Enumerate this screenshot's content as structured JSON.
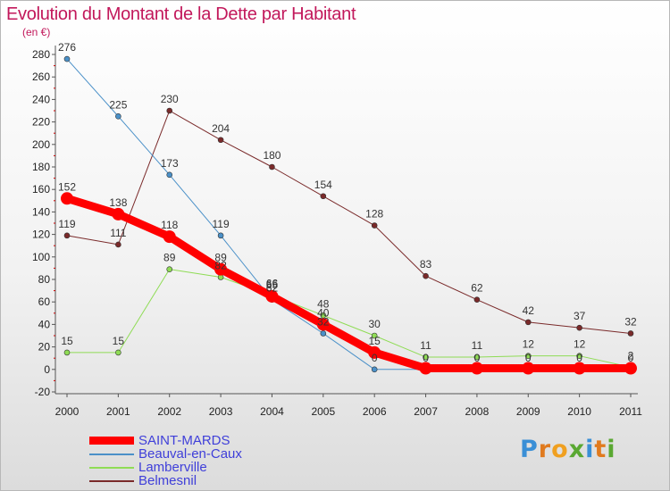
{
  "title": "Evolution du Montant de la Dette par Habitant",
  "subtitle": "(en €)",
  "brand": {
    "text": [
      "P",
      "r",
      "o",
      "x",
      "i",
      "t",
      "i"
    ],
    "colors": [
      "#3a8fd6",
      "#e07a1e",
      "#f0a020",
      "#5aa832",
      "#3a8fd6",
      "#e07a1e",
      "#5aa832"
    ]
  },
  "chart_data": {
    "type": "line",
    "x": [
      "2000",
      "2001",
      "2002",
      "2003",
      "2004",
      "2005",
      "2006",
      "2007",
      "2008",
      "2009",
      "2010",
      "2011"
    ],
    "ylim": [
      -20,
      280
    ],
    "yticks": [
      -20,
      0,
      20,
      40,
      60,
      80,
      100,
      120,
      140,
      160,
      180,
      200,
      220,
      240,
      260,
      280
    ],
    "grid": false,
    "legend_position": "bottom-left",
    "series": [
      {
        "name": "SAINT-MARDS",
        "color": "#ff0000",
        "width": 9,
        "marker": 7,
        "values": [
          152,
          138,
          118,
          89,
          65,
          40,
          15,
          1,
          1,
          1,
          1,
          1
        ],
        "labels": [
          "152",
          "138",
          "118",
          "89",
          "65",
          "40",
          "15",
          "",
          "",
          "",
          "",
          ""
        ]
      },
      {
        "name": "Beauval-en-Caux",
        "color": "#4a90c8",
        "width": 1,
        "marker": 3,
        "values": [
          276,
          225,
          173,
          119,
          62,
          32,
          0,
          0,
          0,
          0,
          0,
          0
        ],
        "labels": [
          "276",
          "225",
          "173",
          "119",
          "62",
          "32",
          "0",
          "0",
          "0",
          "0",
          "0",
          "0"
        ]
      },
      {
        "name": "Lamberville",
        "color": "#8fdc55",
        "width": 1,
        "marker": 3,
        "values": [
          15,
          15,
          89,
          82,
          66,
          48,
          30,
          11,
          11,
          12,
          12,
          2
        ],
        "labels": [
          "15",
          "15",
          "89",
          "82",
          "66",
          "48",
          "30",
          "11",
          "11",
          "12",
          "12",
          "2"
        ]
      },
      {
        "name": "Belmesnil",
        "color": "#7a2a2a",
        "width": 1,
        "marker": 3,
        "values": [
          119,
          111,
          230,
          204,
          180,
          154,
          128,
          83,
          62,
          42,
          37,
          32
        ],
        "labels": [
          "119",
          "111",
          "230",
          "204",
          "180",
          "154",
          "128",
          "83",
          "62",
          "42",
          "37",
          "32"
        ]
      }
    ]
  }
}
